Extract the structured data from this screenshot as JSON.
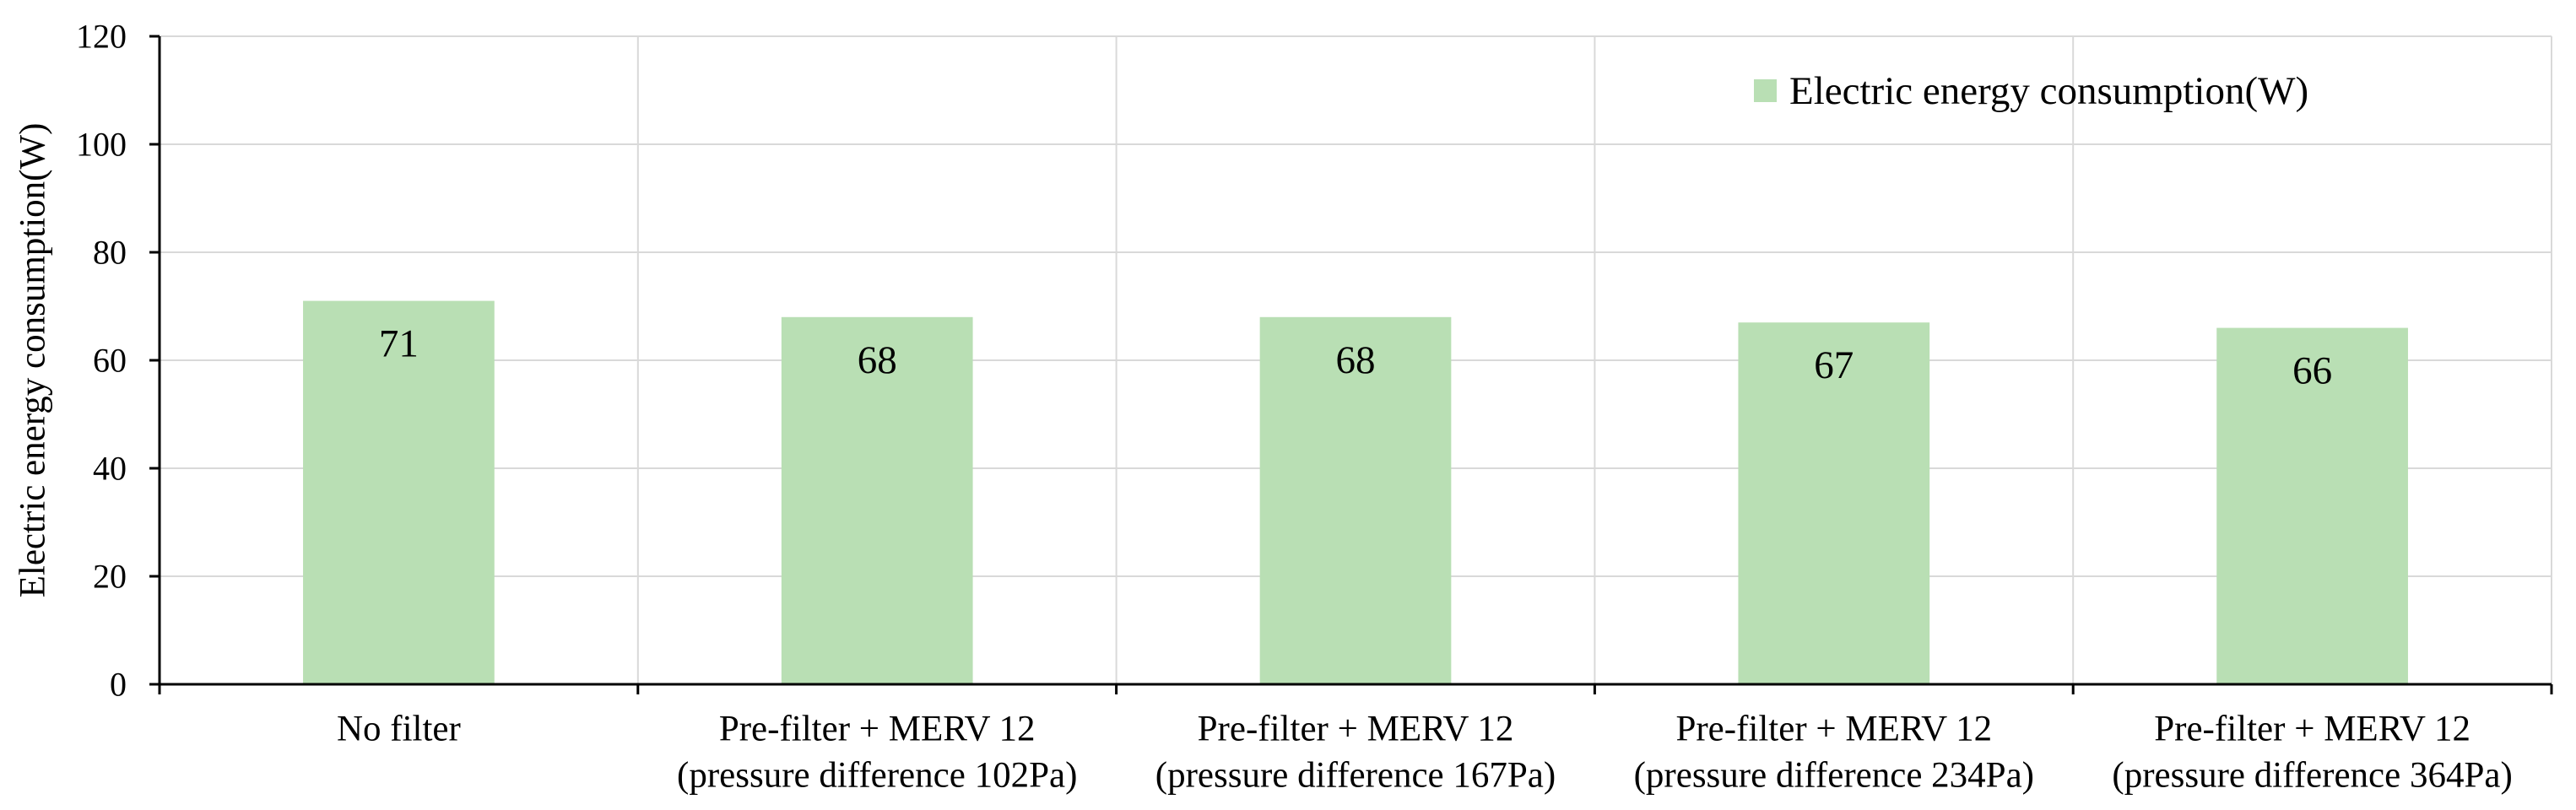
{
  "chart_data": {
    "type": "bar",
    "title": "",
    "xlabel": "",
    "ylabel": "Electric energy consumption(W)",
    "categories": [
      [
        "No filter"
      ],
      [
        "Pre-filter + MERV 12",
        "(pressure difference 102Pa)"
      ],
      [
        "Pre-filter + MERV 12",
        "(pressure difference 167Pa)"
      ],
      [
        "Pre-filter + MERV 12",
        "(pressure difference 234Pa)"
      ],
      [
        "Pre-filter + MERV 12",
        "(pressure difference 364Pa)"
      ]
    ],
    "series": [
      {
        "name": "Electric energy consumption(W)",
        "values": [
          71,
          68,
          68,
          67,
          66
        ],
        "color": "#b9dfb4"
      }
    ],
    "ylim": [
      0,
      120
    ],
    "yticks": [
      0,
      20,
      40,
      60,
      80,
      100,
      120
    ],
    "data_labels": true,
    "grid": true,
    "legend": "top-right",
    "axis_color": "#000000",
    "grid_color": "#d9d9d9"
  }
}
